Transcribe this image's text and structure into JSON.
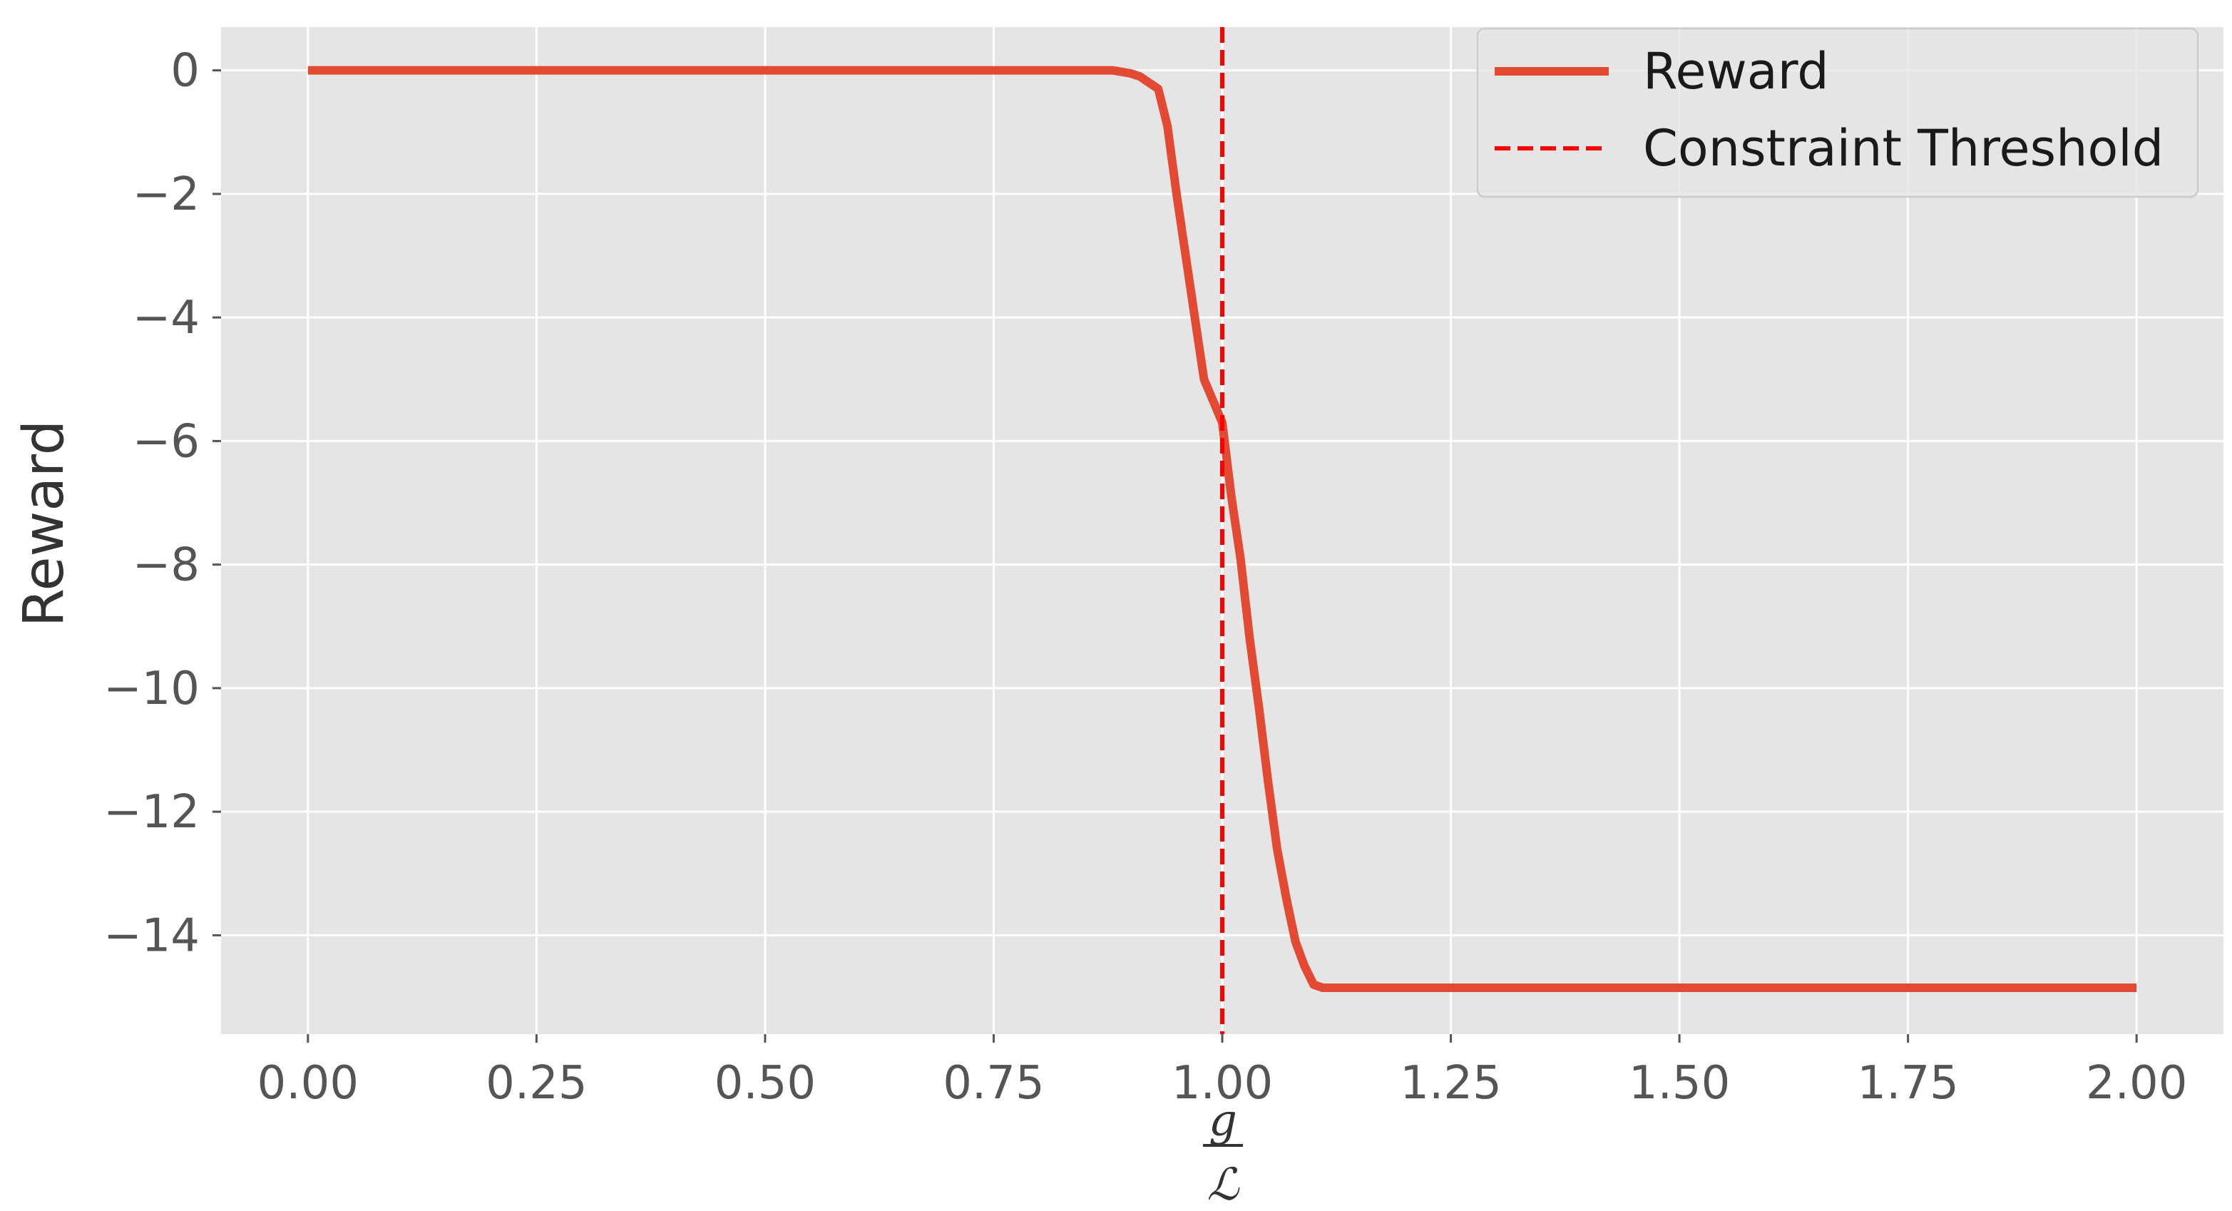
{
  "chart_data": {
    "type": "line",
    "xlabel": {
      "numerator": "g",
      "denominator": "ℒ"
    },
    "ylabel": "Reward",
    "xlim": [
      -0.095,
      2.095
    ],
    "ylim": [
      -15.6,
      0.7
    ],
    "xticks": [
      0.0,
      0.25,
      0.5,
      0.75,
      1.0,
      1.25,
      1.5,
      1.75,
      2.0
    ],
    "xtick_labels": [
      "0.00",
      "0.25",
      "0.50",
      "0.75",
      "1.00",
      "1.25",
      "1.50",
      "1.75",
      "2.00"
    ],
    "yticks": [
      0,
      -2,
      -4,
      -6,
      -8,
      -10,
      -12,
      -14
    ],
    "ytick_labels": [
      "0",
      "−2",
      "−4",
      "−6",
      "−8",
      "−10",
      "−12",
      "−14"
    ],
    "grid": true,
    "legend_position": "top-right",
    "series": [
      {
        "name": "Reward",
        "color": "#E24A33",
        "style": "solid",
        "x": [
          0.0,
          0.8,
          0.88,
          0.9,
          0.91,
          0.93,
          0.94,
          0.95,
          0.97,
          0.98,
          1.0,
          1.01,
          1.02,
          1.03,
          1.04,
          1.05,
          1.06,
          1.07,
          1.08,
          1.09,
          1.1,
          1.11,
          1.12,
          1.15,
          1.5,
          2.0
        ],
        "y": [
          0.0,
          0.0,
          0.0,
          -0.05,
          -0.1,
          -0.3,
          -0.9,
          -2.0,
          -4.0,
          -5.0,
          -5.7,
          -6.9,
          -7.9,
          -9.2,
          -10.3,
          -11.5,
          -12.6,
          -13.4,
          -14.1,
          -14.5,
          -14.8,
          -14.85,
          -14.85,
          -14.85,
          -14.85,
          -14.85
        ]
      },
      {
        "name": "Constraint Threshold",
        "color": "#FF0000",
        "style": "dashed",
        "vline_x": 1.0
      }
    ]
  }
}
